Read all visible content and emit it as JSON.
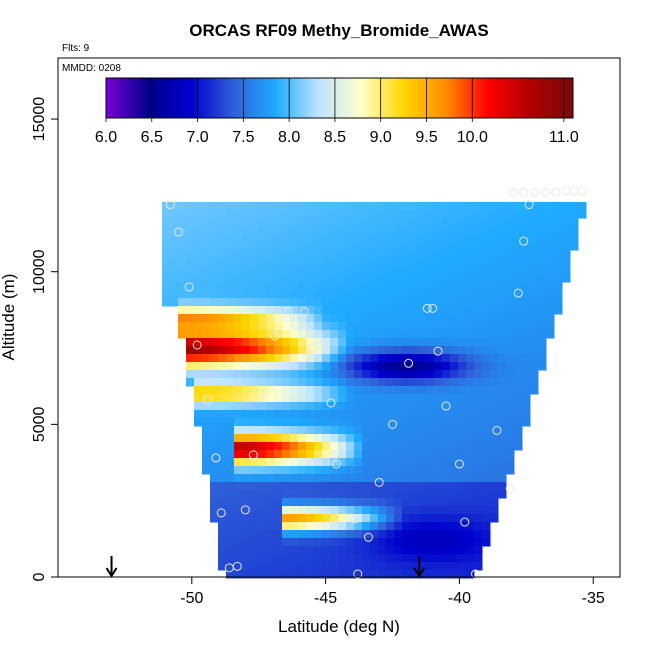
{
  "chart_data": {
    "type": "heatmap",
    "title": "ORCAS RF09 Methy_Bromide_AWAS",
    "flights_label": "Flts: 9",
    "date_label": "MMDD: 0208",
    "xlabel": "Latitude (deg N)",
    "ylabel": "Altitude (m)",
    "xlim": [
      -55,
      -34
    ],
    "ylim": [
      0,
      17000
    ],
    "x_ticks": [
      -50,
      -45,
      -40,
      -35
    ],
    "y_ticks": [
      0,
      5000,
      10000,
      15000
    ],
    "colorbar": {
      "range": [
        6.0,
        11.1
      ],
      "ticks": [
        6.0,
        6.5,
        7.0,
        7.5,
        8.0,
        8.5,
        9.0,
        9.5,
        10.0,
        11.0
      ],
      "colors": [
        "#7a00d9",
        "#00008b",
        "#0000cd",
        "#2f5fd8",
        "#1eaaff",
        "#bde3ff",
        "#ffffcc",
        "#ffd700",
        "#ff8c00",
        "#ff0000",
        "#b00000",
        "#7a0a0a"
      ]
    },
    "arrows_lat": [
      -53,
      -41.5
    ],
    "field_bounds": {
      "lat_min": -51,
      "lat_max": -35.2,
      "alt_top": 12400,
      "bottom_left_lat": -48.8,
      "bottom_right_lat": -39.5
    },
    "bands": [
      {
        "alt": 7500,
        "lat_start": -50.2,
        "lat_end": -44,
        "peak": 10.8,
        "width": 600
      },
      {
        "alt": 8400,
        "lat_start": -50.2,
        "lat_end": -45,
        "peak": 9.8,
        "width": 400
      },
      {
        "alt": 6000,
        "lat_start": -49.5,
        "lat_end": -44,
        "peak": 9.4,
        "width": 350
      },
      {
        "alt": 4200,
        "lat_start": -48.2,
        "lat_end": -43.5,
        "peak": 10.6,
        "width": 500
      },
      {
        "alt": 1900,
        "lat_start": -46.5,
        "lat_end": -42,
        "peak": 9.6,
        "width": 400
      }
    ],
    "lows": [
      {
        "alt": 6900,
        "lat": -42,
        "value": 6.5,
        "width": 500
      },
      {
        "alt": 1200,
        "lat": -41,
        "value": 6.8,
        "width": 700
      }
    ],
    "samples": [
      {
        "lat": -50.8,
        "alt": 12200
      },
      {
        "lat": -50.5,
        "alt": 11300
      },
      {
        "lat": -50.1,
        "alt": 9500
      },
      {
        "lat": -49.8,
        "alt": 7600
      },
      {
        "lat": -49.4,
        "alt": 5800
      },
      {
        "lat": -49.1,
        "alt": 3900
      },
      {
        "lat": -48.9,
        "alt": 2100
      },
      {
        "lat": -48.6,
        "alt": 300
      },
      {
        "lat": -48.3,
        "alt": 350
      },
      {
        "lat": -48.0,
        "alt": 2200
      },
      {
        "lat": -47.7,
        "alt": 4000
      },
      {
        "lat": -47.3,
        "alt": 6000
      },
      {
        "lat": -46.9,
        "alt": 7900
      },
      {
        "lat": -46.4,
        "alt": 8700
      },
      {
        "lat": -45.8,
        "alt": 8700
      },
      {
        "lat": -45.5,
        "alt": 7500
      },
      {
        "lat": -44.8,
        "alt": 5700
      },
      {
        "lat": -44.6,
        "alt": 3700
      },
      {
        "lat": -43.9,
        "alt": 1900
      },
      {
        "lat": -43.8,
        "alt": 100
      },
      {
        "lat": -43.4,
        "alt": 1300
      },
      {
        "lat": -43.0,
        "alt": 3100
      },
      {
        "lat": -42.5,
        "alt": 5000
      },
      {
        "lat": -41.9,
        "alt": 7000
      },
      {
        "lat": -41.2,
        "alt": 8800
      },
      {
        "lat": -41.0,
        "alt": 8800
      },
      {
        "lat": -40.8,
        "alt": 7400
      },
      {
        "lat": -40.5,
        "alt": 5600
      },
      {
        "lat": -40.0,
        "alt": 3700
      },
      {
        "lat": -39.8,
        "alt": 1800
      },
      {
        "lat": -39.4,
        "alt": 100
      },
      {
        "lat": -38.6,
        "alt": 4800
      },
      {
        "lat": -38.1,
        "alt": 2900
      },
      {
        "lat": -37.8,
        "alt": 9300
      },
      {
        "lat": -37.6,
        "alt": 11000
      },
      {
        "lat": -37.4,
        "alt": 12200
      },
      {
        "lat": -38.0,
        "alt": 12600
      },
      {
        "lat": -37.6,
        "alt": 12600
      },
      {
        "lat": -37.2,
        "alt": 12600
      },
      {
        "lat": -36.8,
        "alt": 12600
      },
      {
        "lat": -36.4,
        "alt": 12600
      },
      {
        "lat": -36.0,
        "alt": 12650
      },
      {
        "lat": -35.7,
        "alt": 12650
      },
      {
        "lat": -35.4,
        "alt": 12650
      }
    ]
  }
}
